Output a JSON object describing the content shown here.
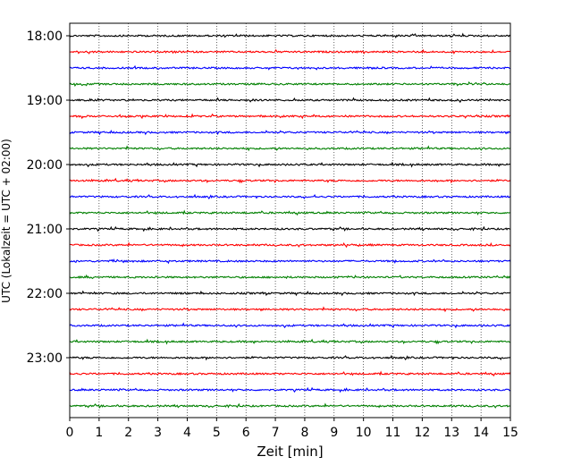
{
  "chart_data": {
    "type": "line",
    "title": "",
    "xlabel": "Zeit  [min]",
    "ylabel": "UTC (Lokalzeit = UTC + 02:00)",
    "xlim": [
      0,
      15
    ],
    "x_ticks": [
      "0",
      "1",
      "2",
      "3",
      "4",
      "5",
      "6",
      "7",
      "8",
      "9",
      "10",
      "11",
      "12",
      "13",
      "14",
      "15"
    ],
    "y_ticks": [
      "18:00",
      "19:00",
      "20:00",
      "21:00",
      "22:00",
      "23:00"
    ],
    "grid": "vertical dotted lines at each minute",
    "trace_interval_minutes": 15,
    "color_cycle": [
      "#000000",
      "#ff0000",
      "#0000ff",
      "#008000"
    ],
    "traces": [
      {
        "start": "18:00",
        "color": "#000000"
      },
      {
        "start": "18:15",
        "color": "#ff0000"
      },
      {
        "start": "18:30",
        "color": "#0000ff"
      },
      {
        "start": "18:45",
        "color": "#008000"
      },
      {
        "start": "19:00",
        "color": "#000000"
      },
      {
        "start": "19:15",
        "color": "#ff0000"
      },
      {
        "start": "19:30",
        "color": "#0000ff"
      },
      {
        "start": "19:45",
        "color": "#008000"
      },
      {
        "start": "20:00",
        "color": "#000000"
      },
      {
        "start": "20:15",
        "color": "#ff0000"
      },
      {
        "start": "20:30",
        "color": "#0000ff"
      },
      {
        "start": "20:45",
        "color": "#008000"
      },
      {
        "start": "21:00",
        "color": "#000000"
      },
      {
        "start": "21:15",
        "color": "#ff0000"
      },
      {
        "start": "21:30",
        "color": "#0000ff"
      },
      {
        "start": "21:45",
        "color": "#008000"
      },
      {
        "start": "22:00",
        "color": "#000000"
      },
      {
        "start": "22:15",
        "color": "#ff0000"
      },
      {
        "start": "22:30",
        "color": "#0000ff"
      },
      {
        "start": "22:45",
        "color": "#008000"
      },
      {
        "start": "23:00",
        "color": "#000000"
      },
      {
        "start": "23:15",
        "color": "#ff0000"
      },
      {
        "start": "23:30",
        "color": "#0000ff"
      },
      {
        "start": "23:45",
        "color": "#008000"
      }
    ]
  }
}
